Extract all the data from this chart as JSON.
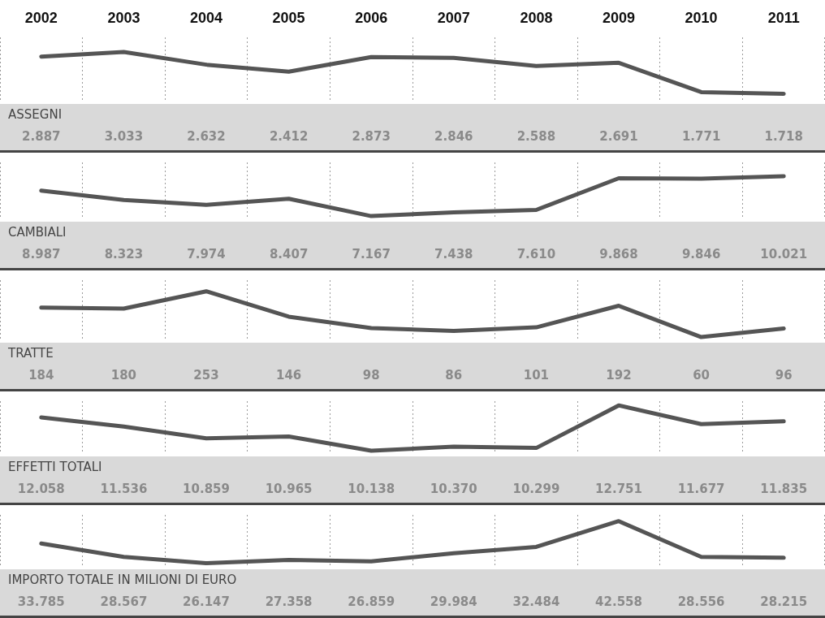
{
  "chart_data": [
    {
      "type": "line",
      "title": "ASSEGNI",
      "categories": [
        "2002",
        "2003",
        "2004",
        "2005",
        "2006",
        "2007",
        "2008",
        "2009",
        "2010",
        "2011"
      ],
      "values": [
        2887,
        3033,
        2632,
        2412,
        2873,
        2846,
        2588,
        2691,
        1771,
        1718
      ],
      "value_labels": [
        "2.887",
        "3.033",
        "2.632",
        "2.412",
        "2.873",
        "2.846",
        "2.588",
        "2.691",
        "1.771",
        "1.718"
      ],
      "color": "#555555",
      "grid": "x",
      "marker": "none",
      "tick_labels": "x"
    },
    {
      "type": "line",
      "title": "CAMBIALI",
      "categories": [
        "2002",
        "2003",
        "2004",
        "2005",
        "2006",
        "2007",
        "2008",
        "2009",
        "2010",
        "2011"
      ],
      "values": [
        8987,
        8323,
        7974,
        8407,
        7167,
        7438,
        7610,
        9868,
        9846,
        10021
      ],
      "value_labels": [
        "8.987",
        "8.323",
        "7.974",
        "8.407",
        "7.167",
        "7.438",
        "7.610",
        "9.868",
        "9.846",
        "10.021"
      ],
      "color": "#555555",
      "grid": "x",
      "marker": "none",
      "tick_labels": false
    },
    {
      "type": "line",
      "title": "TRATTE",
      "categories": [
        "2002",
        "2003",
        "2004",
        "2005",
        "2006",
        "2007",
        "2008",
        "2009",
        "2010",
        "2011"
      ],
      "values": [
        184,
        180,
        253,
        146,
        98,
        86,
        101,
        192,
        60,
        96
      ],
      "value_labels": [
        "184",
        "180",
        "253",
        "146",
        "98",
        "86",
        "101",
        "192",
        "60",
        "96"
      ],
      "color": "#555555",
      "grid": "x",
      "marker": "none",
      "tick_labels": false
    },
    {
      "type": "line",
      "title": "EFFETTI TOTALI",
      "categories": [
        "2002",
        "2003",
        "2004",
        "2005",
        "2006",
        "2007",
        "2008",
        "2009",
        "2010",
        "2011"
      ],
      "values": [
        12058,
        11536,
        10859,
        10965,
        10138,
        10370,
        10299,
        12751,
        11677,
        11835
      ],
      "value_labels": [
        "12.058",
        "11.536",
        "10.859",
        "10.965",
        "10.138",
        "10.370",
        "10.299",
        "12.751",
        "11.677",
        "11.835"
      ],
      "color": "#555555",
      "grid": "x",
      "marker": "none",
      "tick_labels": false
    },
    {
      "type": "line",
      "title": "IMPORTO TOTALE IN MILIONI DI EURO",
      "categories": [
        "2002",
        "2003",
        "2004",
        "2005",
        "2006",
        "2007",
        "2008",
        "2009",
        "2010",
        "2011"
      ],
      "values": [
        33785,
        28567,
        26147,
        27358,
        26859,
        29984,
        32484,
        42558,
        28556,
        28215
      ],
      "value_labels": [
        "33.785",
        "28.567",
        "26.147",
        "27.358",
        "26.859",
        "29.984",
        "32.484",
        "42.558",
        "28.556",
        "28.215"
      ],
      "color": "#555555",
      "grid": "x",
      "marker": "none",
      "tick_labels": false
    }
  ]
}
